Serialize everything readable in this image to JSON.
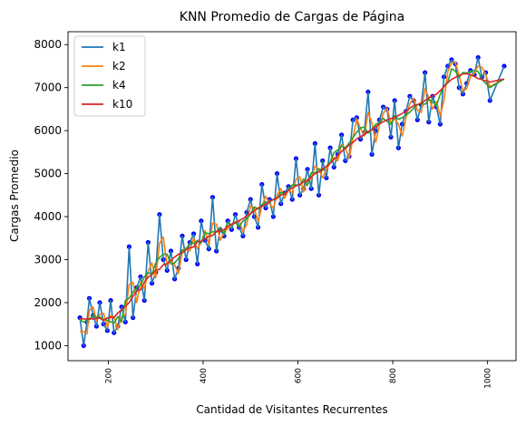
{
  "chart_data": {
    "type": "line",
    "title": "KNN Promedio de Cargas de Página",
    "xlabel": "Cantidad de Visitantes Recurrentes",
    "ylabel": "Cargas Promedio",
    "xlim": [
      115,
      1060
    ],
    "ylim": [
      650,
      8300
    ],
    "xticks": [
      200,
      400,
      600,
      800,
      1000
    ],
    "yticks": [
      1000,
      2000,
      3000,
      4000,
      5000,
      6000,
      7000,
      8000
    ],
    "grid": false,
    "legend_position": "top-left",
    "scatter": {
      "color": "#0000ff",
      "x": [
        140,
        148,
        155,
        160,
        168,
        175,
        182,
        190,
        198,
        205,
        212,
        220,
        228,
        236,
        244,
        252,
        260,
        268,
        276,
        284,
        292,
        300,
        308,
        316,
        324,
        332,
        340,
        348,
        356,
        364,
        372,
        380,
        388,
        396,
        404,
        412,
        420,
        428,
        436,
        444,
        452,
        460,
        468,
        476,
        484,
        492,
        500,
        508,
        516,
        524,
        532,
        540,
        548,
        556,
        564,
        572,
        580,
        588,
        596,
        604,
        612,
        620,
        628,
        636,
        644,
        652,
        660,
        668,
        676,
        684,
        692,
        700,
        708,
        716,
        724,
        732,
        740,
        748,
        756,
        764,
        772,
        780,
        788,
        796,
        804,
        812,
        820,
        828,
        836,
        844,
        852,
        860,
        868,
        876,
        884,
        892,
        900,
        908,
        916,
        924,
        932,
        940,
        948,
        956,
        964,
        972,
        980,
        988,
        996,
        1005,
        1035
      ],
      "y": [
        1650,
        1000,
        1550,
        2100,
        1700,
        1450,
        2000,
        1500,
        1350,
        2050,
        1300,
        1450,
        1900,
        1550,
        3300,
        1650,
        2350,
        2600,
        2050,
        3400,
        2450,
        2700,
        4050,
        3000,
        2750,
        3200,
        2550,
        2800,
        3550,
        3000,
        3400,
        3600,
        2900,
        3900,
        3450,
        3250,
        4450,
        3200,
        3700,
        3550,
        3900,
        3700,
        4050,
        3750,
        3550,
        4100,
        4400,
        4000,
        3750,
        4750,
        4200,
        4400,
        4000,
        5000,
        4300,
        4550,
        4700,
        4400,
        5350,
        4500,
        4650,
        5100,
        4650,
        5700,
        4500,
        5300,
        4900,
        5600,
        5150,
        5450,
        5900,
        5300,
        5400,
        6250,
        6300,
        5800,
        5950,
        6900,
        5450,
        6000,
        6250,
        6550,
        6500,
        5850,
        6700,
        5600,
        6150,
        6450,
        6800,
        6700,
        6250,
        6600,
        7350,
        6200,
        6800,
        6550,
        6150,
        7250,
        7500,
        7650,
        7550,
        7000,
        6850,
        7100,
        7400,
        7300,
        7700,
        7250,
        7350,
        6700,
        7500
      ]
    },
    "series": [
      {
        "name": "k1",
        "color": "#1f77b4",
        "x": [
          140,
          148,
          155,
          160,
          168,
          175,
          182,
          190,
          198,
          205,
          212,
          220,
          228,
          236,
          244,
          252,
          260,
          268,
          276,
          284,
          292,
          300,
          308,
          316,
          324,
          332,
          340,
          348,
          356,
          364,
          372,
          380,
          388,
          396,
          404,
          412,
          420,
          428,
          436,
          444,
          452,
          460,
          468,
          476,
          484,
          492,
          500,
          508,
          516,
          524,
          532,
          540,
          548,
          556,
          564,
          572,
          580,
          588,
          596,
          604,
          612,
          620,
          628,
          636,
          644,
          652,
          660,
          668,
          676,
          684,
          692,
          700,
          708,
          716,
          724,
          732,
          740,
          748,
          756,
          764,
          772,
          780,
          788,
          796,
          804,
          812,
          820,
          828,
          836,
          844,
          852,
          860,
          868,
          876,
          884,
          892,
          900,
          908,
          916,
          924,
          932,
          940,
          948,
          956,
          964,
          972,
          980,
          988,
          996,
          1005,
          1035
        ],
        "values": [
          1650,
          1000,
          1550,
          2100,
          1700,
          1450,
          2000,
          1500,
          1350,
          2050,
          1300,
          1450,
          1900,
          1550,
          3300,
          1650,
          2350,
          2600,
          2050,
          3400,
          2450,
          2700,
          4050,
          3000,
          2750,
          3200,
          2550,
          2800,
          3550,
          3000,
          3400,
          3600,
          2900,
          3900,
          3450,
          3250,
          4450,
          3200,
          3700,
          3550,
          3900,
          3700,
          4050,
          3750,
          3550,
          4100,
          4400,
          4000,
          3750,
          4750,
          4200,
          4400,
          4000,
          5000,
          4300,
          4550,
          4700,
          4400,
          5350,
          4500,
          4650,
          5100,
          4650,
          5700,
          4500,
          5300,
          4900,
          5600,
          5150,
          5450,
          5900,
          5300,
          5400,
          6250,
          6300,
          5800,
          5950,
          6900,
          5450,
          6000,
          6250,
          6550,
          6500,
          5850,
          6700,
          5600,
          6150,
          6450,
          6800,
          6700,
          6250,
          6600,
          7350,
          6200,
          6800,
          6550,
          6150,
          7250,
          7500,
          7650,
          7550,
          7000,
          6850,
          7100,
          7400,
          7300,
          7700,
          7250,
          7350,
          6700,
          7500
        ]
      },
      {
        "name": "k2",
        "color": "#ff7f0e",
        "x": [
          140,
          148,
          155,
          160,
          168,
          175,
          182,
          190,
          198,
          205,
          212,
          220,
          228,
          236,
          244,
          252,
          260,
          268,
          276,
          284,
          292,
          300,
          308,
          316,
          324,
          332,
          340,
          348,
          356,
          364,
          372,
          380,
          388,
          396,
          404,
          412,
          420,
          428,
          436,
          444,
          452,
          460,
          468,
          476,
          484,
          492,
          500,
          508,
          516,
          524,
          532,
          540,
          548,
          556,
          564,
          572,
          580,
          588,
          596,
          604,
          612,
          620,
          628,
          636,
          644,
          652,
          660,
          668,
          676,
          684,
          692,
          700,
          708,
          716,
          724,
          732,
          740,
          748,
          756,
          764,
          772,
          780,
          788,
          796,
          804,
          812,
          820,
          828,
          836,
          844,
          852,
          860,
          868,
          876,
          884,
          892,
          900,
          908,
          916,
          924,
          932,
          940,
          948,
          956,
          964,
          972,
          980,
          988,
          996,
          1005,
          1035
        ],
        "values": [
          1325,
          1325,
          1275,
          1825,
          1900,
          1575,
          1725,
          1750,
          1425,
          1700,
          1675,
          1375,
          1675,
          1725,
          2425,
          2475,
          2000,
          2475,
          2325,
          2725,
          2925,
          2575,
          3375,
          3525,
          2875,
          2975,
          2875,
          2675,
          3175,
          3275,
          3200,
          3500,
          3250,
          3400,
          3675,
          3350,
          3850,
          3825,
          3450,
          3625,
          3725,
          3800,
          3875,
          3900,
          3650,
          3825,
          4250,
          4200,
          3875,
          4250,
          4475,
          4300,
          4200,
          4500,
          4650,
          4425,
          4625,
          4550,
          4875,
          4925,
          4575,
          4875,
          4875,
          5175,
          5100,
          4900,
          5100,
          5250,
          5375,
          5300,
          5675,
          5600,
          5350,
          5825,
          6275,
          6050,
          5875,
          6425,
          6175,
          5725,
          6125,
          6400,
          6525,
          6175,
          6275,
          6150,
          5875,
          6300,
          6625,
          6750,
          6475,
          6425,
          6975,
          6775,
          6500,
          6675,
          6350,
          6700,
          7375,
          7575,
          7600,
          7275,
          6925,
          6975,
          7250,
          7350,
          7500,
          7475,
          7300,
          7025,
          7200
        ]
      },
      {
        "name": "k4",
        "color": "#2ca02c",
        "x": [
          140,
          148,
          155,
          160,
          168,
          175,
          182,
          190,
          198,
          205,
          212,
          220,
          228,
          236,
          244,
          252,
          260,
          268,
          276,
          284,
          292,
          300,
          308,
          316,
          324,
          332,
          340,
          348,
          356,
          364,
          372,
          380,
          388,
          396,
          404,
          412,
          420,
          428,
          436,
          444,
          452,
          460,
          468,
          476,
          484,
          492,
          500,
          508,
          516,
          524,
          532,
          540,
          548,
          556,
          564,
          572,
          580,
          588,
          596,
          604,
          612,
          620,
          628,
          636,
          644,
          652,
          660,
          668,
          676,
          684,
          692,
          700,
          708,
          716,
          724,
          732,
          740,
          748,
          756,
          764,
          772,
          780,
          788,
          796,
          804,
          812,
          820,
          828,
          836,
          844,
          852,
          860,
          868,
          876,
          884,
          892,
          900,
          908,
          916,
          924,
          932,
          940,
          948,
          956,
          964,
          972,
          980,
          988,
          996,
          1005,
          1035
        ],
        "values": [
          1600,
          1550,
          1575,
          1612,
          1700,
          1662,
          1662,
          1612,
          1588,
          1550,
          1525,
          1675,
          1550,
          2050,
          2100,
          2238,
          2350,
          2400,
          2600,
          2700,
          2650,
          2925,
          3050,
          3125,
          3125,
          2900,
          2925,
          3025,
          3225,
          3238,
          3388,
          3375,
          3450,
          3388,
          3625,
          3600,
          3650,
          3637,
          3750,
          3612,
          3875,
          3800,
          3862,
          3762,
          3900,
          3950,
          4062,
          4225,
          4175,
          4275,
          4338,
          4338,
          4400,
          4425,
          4562,
          4538,
          4612,
          4738,
          4738,
          4725,
          4875,
          4725,
          5025,
          5012,
          5112,
          5075,
          5175,
          5262,
          5488,
          5550,
          5638,
          5600,
          5712,
          5838,
          5962,
          6062,
          6088,
          5938,
          6025,
          6150,
          6175,
          6288,
          6212,
          6150,
          6350,
          6262,
          6300,
          6362,
          6425,
          6525,
          6600,
          6638,
          6612,
          6725,
          6675,
          6575,
          6838,
          7038,
          7125,
          7438,
          7388,
          7238,
          7350,
          7338,
          7375,
          7400,
          7375,
          7200,
          7100,
          7000,
          7200
        ]
      },
      {
        "name": "k10",
        "color": "#d62728",
        "x": [
          140,
          148,
          155,
          160,
          168,
          175,
          182,
          190,
          198,
          205,
          212,
          220,
          228,
          236,
          244,
          252,
          260,
          268,
          276,
          284,
          292,
          300,
          308,
          316,
          324,
          332,
          340,
          348,
          356,
          364,
          372,
          380,
          388,
          396,
          404,
          412,
          420,
          428,
          436,
          444,
          452,
          460,
          468,
          476,
          484,
          492,
          500,
          508,
          516,
          524,
          532,
          540,
          548,
          556,
          564,
          572,
          580,
          588,
          596,
          604,
          612,
          620,
          628,
          636,
          644,
          652,
          660,
          668,
          676,
          684,
          692,
          700,
          708,
          716,
          724,
          732,
          740,
          748,
          756,
          764,
          772,
          780,
          788,
          796,
          804,
          812,
          820,
          828,
          836,
          844,
          852,
          860,
          868,
          876,
          884,
          892,
          900,
          908,
          916,
          924,
          932,
          940,
          948,
          956,
          964,
          972,
          980,
          988,
          996,
          1005,
          1035
        ],
        "values": [
          1620,
          1620,
          1620,
          1620,
          1620,
          1630,
          1640,
          1585,
          1645,
          1660,
          1650,
          1760,
          1830,
          1915,
          2000,
          2150,
          2270,
          2295,
          2480,
          2590,
          2650,
          2750,
          2775,
          2880,
          2900,
          2990,
          3060,
          3125,
          3155,
          3230,
          3275,
          3295,
          3415,
          3425,
          3480,
          3545,
          3560,
          3660,
          3665,
          3695,
          3775,
          3825,
          3865,
          3910,
          3955,
          4015,
          4060,
          4135,
          4200,
          4240,
          4285,
          4350,
          4395,
          4425,
          4500,
          4530,
          4610,
          4665,
          4715,
          4750,
          4805,
          4830,
          4925,
          5000,
          5040,
          5110,
          5160,
          5240,
          5330,
          5420,
          5515,
          5585,
          5665,
          5725,
          5810,
          5860,
          5905,
          5980,
          6020,
          6090,
          6160,
          6205,
          6250,
          6280,
          6300,
          6355,
          6400,
          6455,
          6520,
          6580,
          6605,
          6640,
          6700,
          6760,
          6810,
          6845,
          6930,
          7020,
          7115,
          7190,
          7240,
          7280,
          7320,
          7320,
          7300,
          7260,
          7210,
          7185,
          7160,
          7130,
          7200
        ]
      }
    ]
  }
}
